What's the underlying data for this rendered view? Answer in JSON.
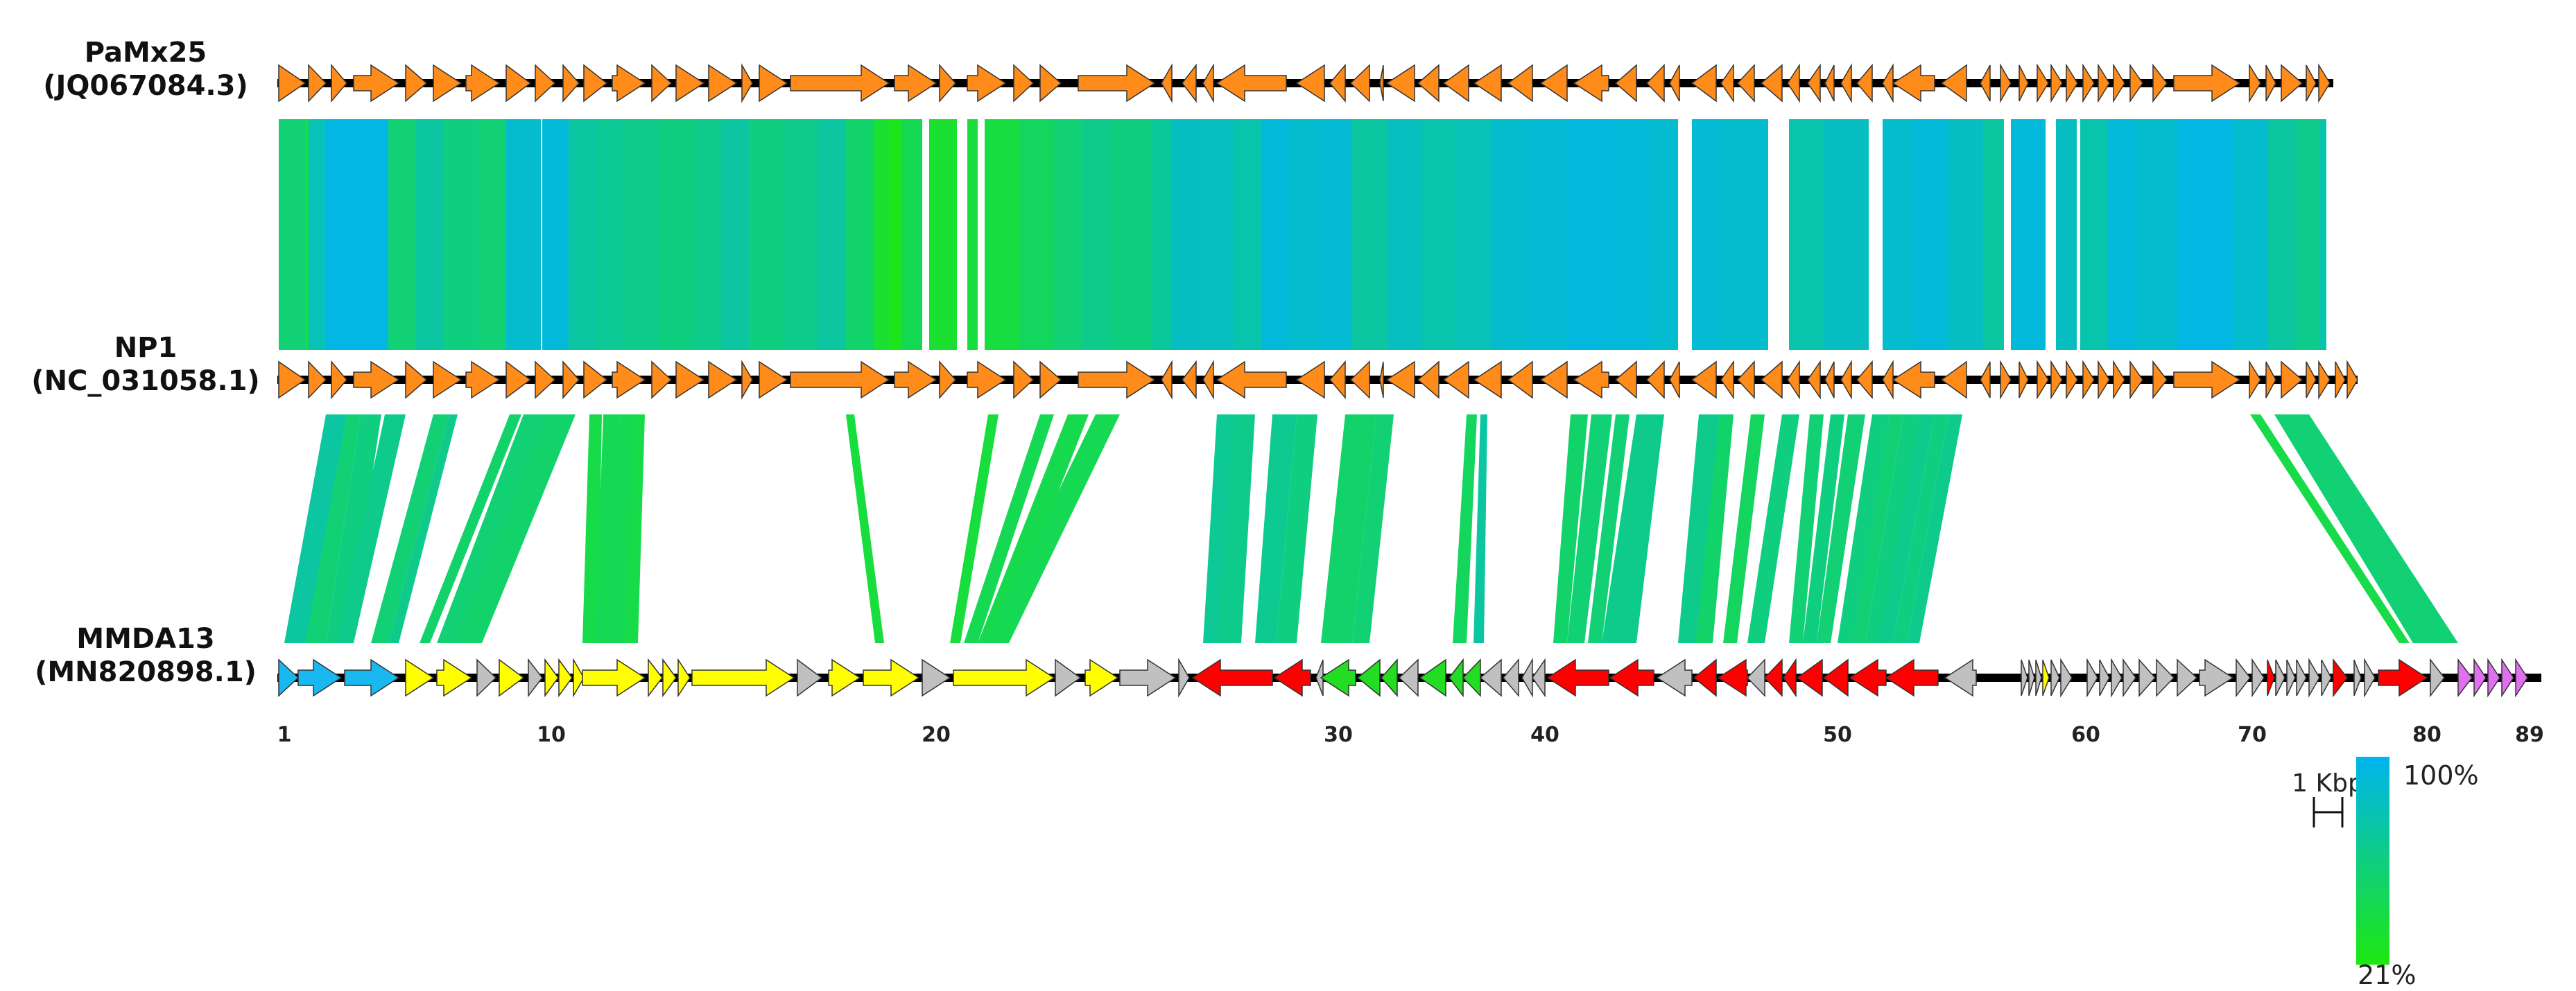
{
  "genomes": [
    {
      "name": "PaMx25",
      "accession": "(JQ067084.3)"
    },
    {
      "name": "NP1",
      "accession": "(NC_031058.1)"
    },
    {
      "name": "MMDA13",
      "accession": "(MN820898.1)"
    }
  ],
  "axis": {
    "unit": "gene",
    "first_gene": 1,
    "last_gene": 89,
    "tick_labels": [
      "1",
      "10",
      "20",
      "30",
      "40",
      "50",
      "60",
      "70",
      "80",
      "89"
    ]
  },
  "scale_bar": {
    "label": "1 Kbp"
  },
  "legend": {
    "max_label": "100%",
    "min_label": "21%",
    "max_color": "#00b4ef",
    "min_color": "#1ee810"
  },
  "colors": {
    "orange_gene": "#ff8c1a",
    "cyan_gene": "#1ab8f0",
    "yellow_gene": "#ffff00",
    "gray_gene": "#c0c0c0",
    "red_gene": "#ff0000",
    "green_gene": "#22dd22",
    "violet_gene": "#e070f0",
    "backbone": "#000000"
  }
}
